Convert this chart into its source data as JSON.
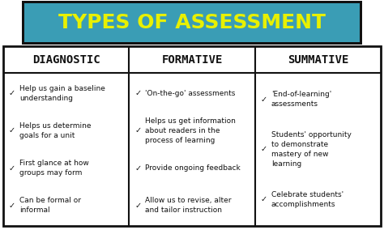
{
  "title": "TYPES OF ASSESSMENT",
  "title_bg_color": "#3a9db5",
  "title_text_color": "#e8f000",
  "title_border_color": "#111111",
  "columns": [
    "DIAGNOSTIC",
    "FORMATIVE",
    "SUMMATIVE"
  ],
  "header_text_color": "#111111",
  "table_bg_color": "#ffffff",
  "table_border_color": "#111111",
  "bullet": "✓",
  "col1_items": [
    "Help us gain a baseline\nunderstanding",
    "Helps us determine\ngoals for a unit",
    "First glance at how\ngroups may form",
    "Can be formal or\ninformal"
  ],
  "col2_items": [
    "'On-the-go' assessments",
    "Helps us get information\nabout readers in the\nprocess of learning",
    "Provide ongoing feedback",
    "Allow us to revise, alter\nand tailor instruction"
  ],
  "col3_items": [
    "'End-of-learning'\nassessments",
    "Students' opportunity\nto demonstrate\nmastery of new\nlearning",
    "Celebrate students'\naccomplishments"
  ],
  "fig_width": 4.74,
  "fig_height": 2.84,
  "dpi": 100
}
